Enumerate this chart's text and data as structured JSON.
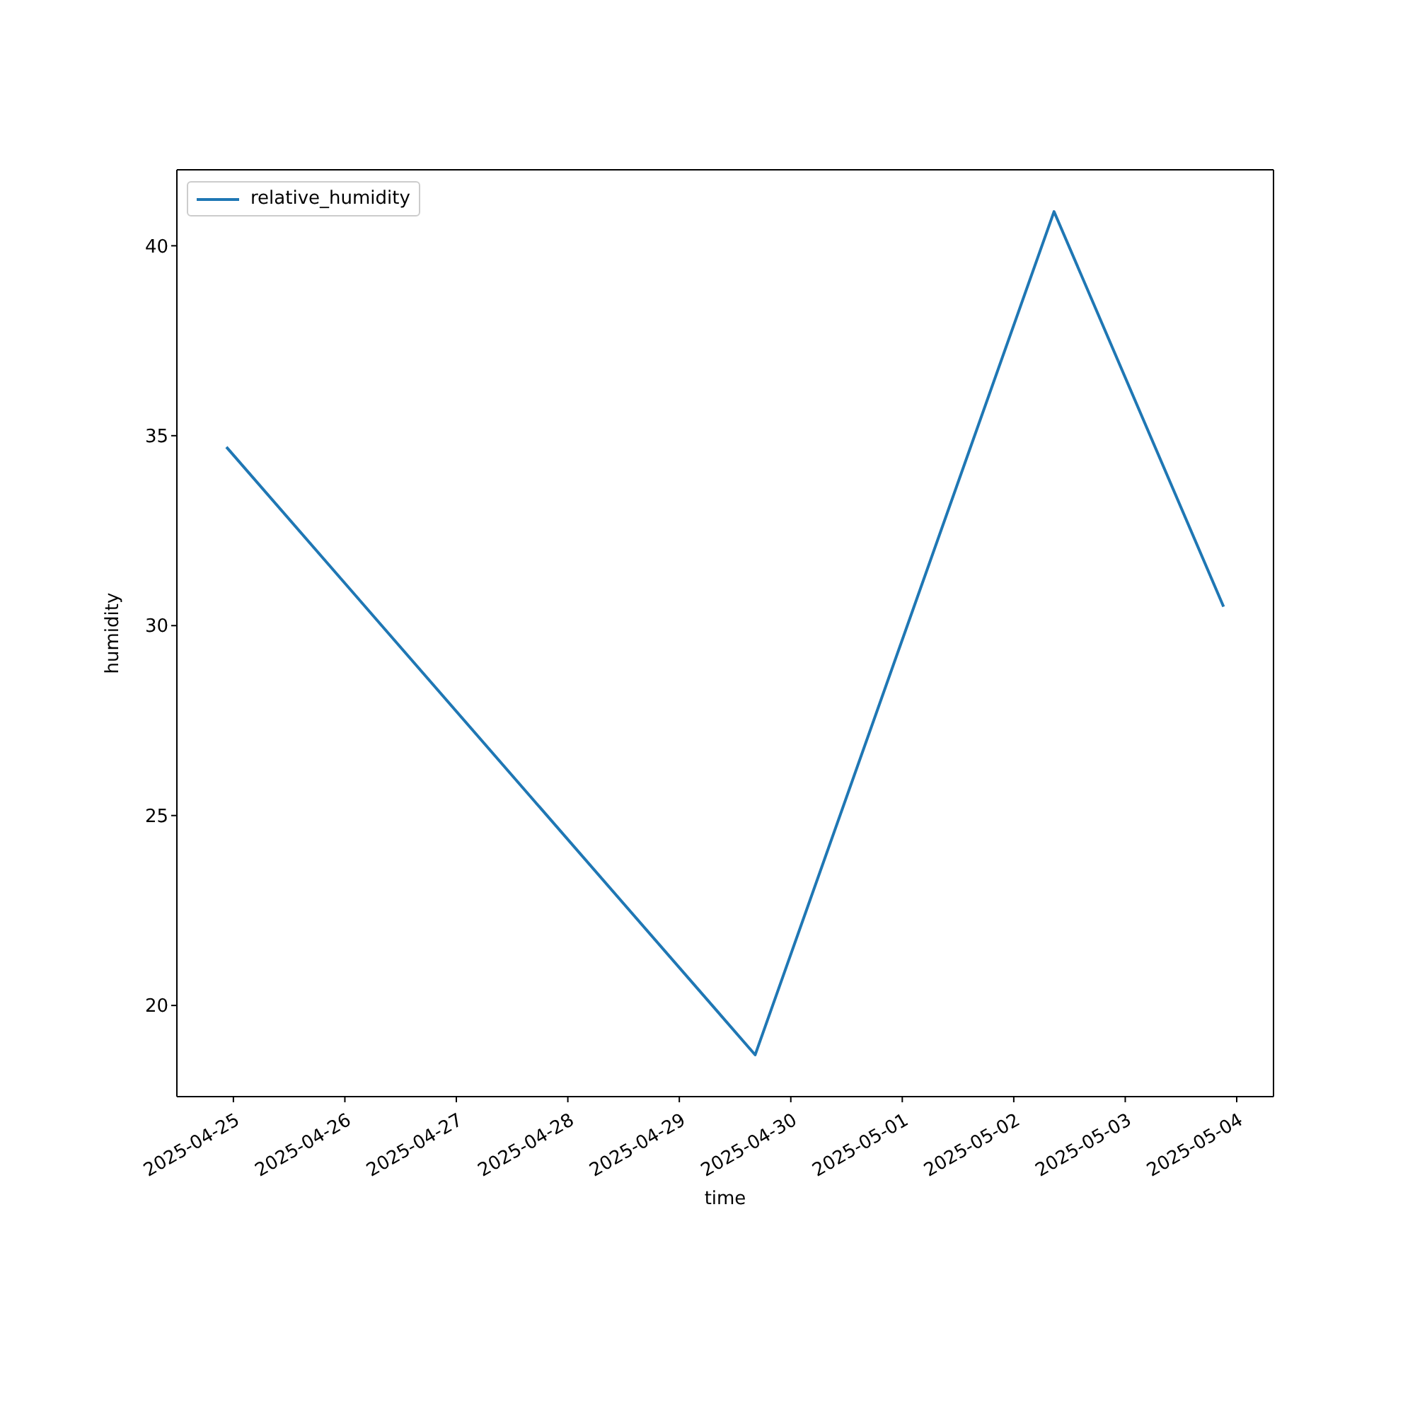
{
  "chart_data": {
    "type": "line",
    "xlabel": "time",
    "ylabel": "humidity",
    "x": [
      "2025-04-24T22:30",
      "2025-04-29T16:20",
      "2025-05-02T08:40",
      "2025-05-03T21:10"
    ],
    "series": [
      {
        "name": "relative_humidity",
        "color": "#1f77b4",
        "values": [
          34.7,
          18.7,
          40.9,
          30.5
        ]
      }
    ],
    "xlim": [
      "2025-04-24T11:50",
      "2025-05-04T07:55"
    ],
    "xticks": [
      "2025-04-25",
      "2025-04-26",
      "2025-04-27",
      "2025-04-28",
      "2025-04-29",
      "2025-04-30",
      "2025-05-01",
      "2025-05-02",
      "2025-05-03",
      "2025-05-04"
    ],
    "ylim": [
      17.6,
      42.0
    ],
    "yticks": [
      20,
      25,
      30,
      35,
      40
    ],
    "grid": false,
    "legend": "top left",
    "marker": "none",
    "line_style": "solid"
  }
}
